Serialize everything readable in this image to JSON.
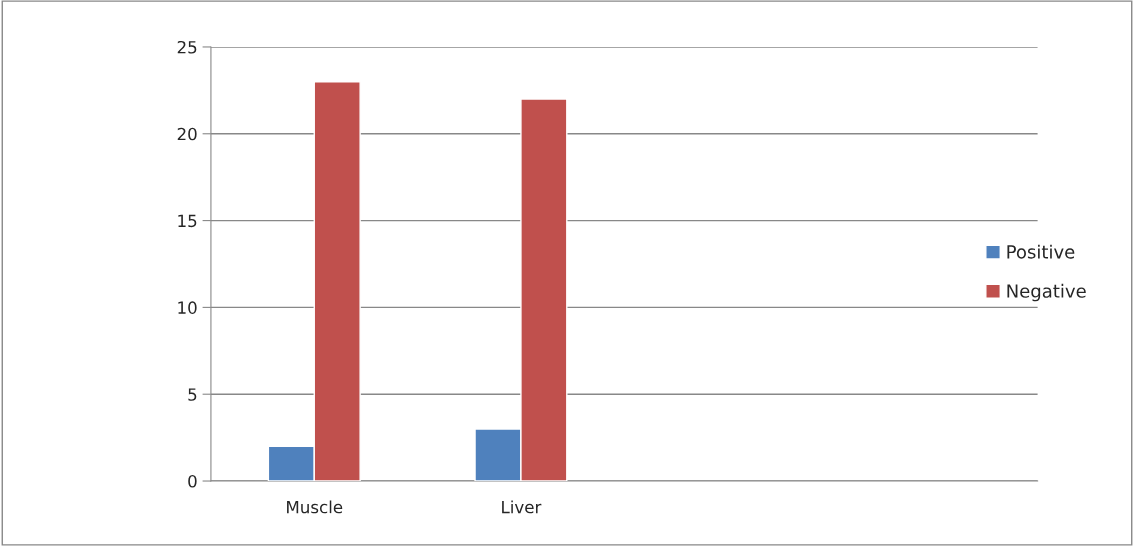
{
  "chart_data": {
    "type": "bar",
    "categories": [
      "Muscle",
      "Liver",
      null,
      null
    ],
    "series": [
      {
        "name": "Positive",
        "color": "#4f81bd",
        "values": [
          2,
          3,
          null,
          null
        ]
      },
      {
        "name": "Negative",
        "color": "#c0504d",
        "values": [
          23,
          22,
          null,
          null
        ]
      }
    ],
    "ylim": [
      0,
      25
    ],
    "yticks": [
      0,
      5,
      10,
      15,
      20,
      25
    ],
    "grid": "y",
    "legend": "right"
  }
}
